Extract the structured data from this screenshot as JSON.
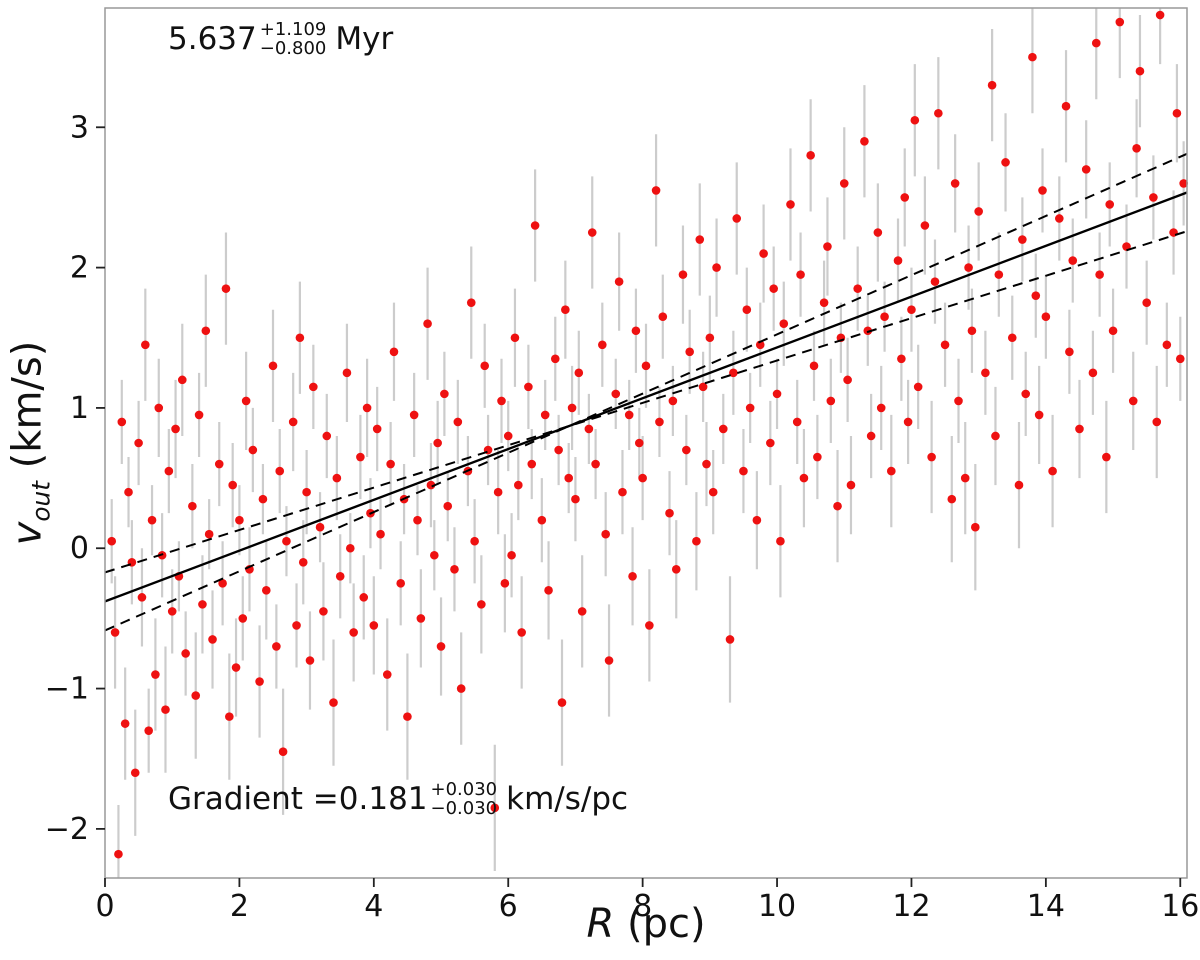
{
  "annotations": {
    "age_value": "5.637",
    "age_plus": "+1.109",
    "age_minus": "−0.800",
    "age_unit": "Myr",
    "gradient_prefix": "Gradient = ",
    "gradient_value": "0.181",
    "gradient_plus": "+0.030",
    "gradient_minus": "−0.030",
    "gradient_unit": "km/s/pc"
  },
  "chart_data": {
    "type": "scatter",
    "title": "",
    "xlabel": "R (pc)",
    "ylabel": "v_out (km/s)",
    "xlabel_var": "R",
    "xlabel_rest": " (pc)",
    "ylabel_var": "v",
    "ylabel_sub": "out",
    "ylabel_rest": " (km/s)",
    "xlim": [
      0,
      16.1
    ],
    "ylim": [
      -2.35,
      3.85
    ],
    "x_ticks": [
      0,
      2,
      4,
      6,
      8,
      10,
      12,
      14,
      16
    ],
    "y_ticks": [
      -2,
      -1,
      0,
      1,
      2,
      3
    ],
    "grid": false,
    "legend": "none",
    "marker_color": "#ee1111",
    "errorbar_color": "#c7c7c7",
    "line_color": "#000000",
    "fit": {
      "slope": 0.181,
      "intercept": -0.379
    },
    "envelope": [
      {
        "slope": 0.211,
        "intercept": -0.586
      },
      {
        "slope": 0.151,
        "intercept": -0.172
      }
    ],
    "points": [
      [
        0.1,
        0.05,
        0.3
      ],
      [
        0.15,
        -0.6,
        0.4
      ],
      [
        0.2,
        -2.18,
        0.35
      ],
      [
        0.25,
        0.9,
        0.3
      ],
      [
        0.3,
        -1.25,
        0.4
      ],
      [
        0.35,
        0.4,
        0.25
      ],
      [
        0.4,
        -0.1,
        0.3
      ],
      [
        0.45,
        -1.6,
        0.45
      ],
      [
        0.5,
        0.75,
        0.3
      ],
      [
        0.55,
        -0.35,
        0.35
      ],
      [
        0.6,
        1.45,
        0.4
      ],
      [
        0.65,
        -1.3,
        0.3
      ],
      [
        0.7,
        0.2,
        0.25
      ],
      [
        0.75,
        -0.9,
        0.4
      ],
      [
        0.8,
        1.0,
        0.35
      ],
      [
        0.85,
        -0.05,
        0.3
      ],
      [
        0.9,
        -1.15,
        0.45
      ],
      [
        0.95,
        0.55,
        0.3
      ],
      [
        1.0,
        -0.45,
        0.3
      ],
      [
        1.05,
        0.85,
        0.35
      ],
      [
        1.1,
        -0.2,
        0.25
      ],
      [
        1.15,
        1.2,
        0.4
      ],
      [
        1.2,
        -0.75,
        0.3
      ],
      [
        1.3,
        0.3,
        0.3
      ],
      [
        1.35,
        -1.05,
        0.45
      ],
      [
        1.4,
        0.95,
        0.3
      ],
      [
        1.45,
        -0.4,
        0.35
      ],
      [
        1.5,
        1.55,
        0.4
      ],
      [
        1.55,
        0.1,
        0.25
      ],
      [
        1.6,
        -0.65,
        0.35
      ],
      [
        1.7,
        0.6,
        0.3
      ],
      [
        1.75,
        -0.25,
        0.3
      ],
      [
        1.8,
        1.85,
        0.4
      ],
      [
        1.85,
        -1.2,
        0.45
      ],
      [
        1.9,
        0.45,
        0.3
      ],
      [
        1.95,
        -0.85,
        0.35
      ],
      [
        2.0,
        0.2,
        0.25
      ],
      [
        2.05,
        -0.5,
        0.3
      ],
      [
        2.1,
        1.05,
        0.35
      ],
      [
        2.15,
        -0.15,
        0.3
      ],
      [
        2.2,
        0.7,
        0.3
      ],
      [
        2.3,
        -0.95,
        0.4
      ],
      [
        2.35,
        0.35,
        0.25
      ],
      [
        2.4,
        -0.3,
        0.35
      ],
      [
        2.5,
        1.3,
        0.4
      ],
      [
        2.55,
        -0.7,
        0.3
      ],
      [
        2.6,
        0.55,
        0.3
      ],
      [
        2.65,
        -1.45,
        0.45
      ],
      [
        2.7,
        0.05,
        0.25
      ],
      [
        2.8,
        0.9,
        0.35
      ],
      [
        2.85,
        -0.55,
        0.3
      ],
      [
        2.9,
        1.5,
        0.4
      ],
      [
        2.95,
        -0.1,
        0.3
      ],
      [
        3.0,
        0.4,
        0.3
      ],
      [
        3.05,
        -0.8,
        0.35
      ],
      [
        3.1,
        1.15,
        0.3
      ],
      [
        3.2,
        0.15,
        0.25
      ],
      [
        3.25,
        -0.45,
        0.35
      ],
      [
        3.3,
        0.8,
        0.3
      ],
      [
        3.4,
        -1.1,
        0.45
      ],
      [
        3.45,
        0.5,
        0.3
      ],
      [
        3.5,
        -0.2,
        0.3
      ],
      [
        3.6,
        1.25,
        0.35
      ],
      [
        3.65,
        0.0,
        0.25
      ],
      [
        3.7,
        -0.6,
        0.35
      ],
      [
        3.8,
        0.65,
        0.3
      ],
      [
        3.85,
        -0.35,
        0.3
      ],
      [
        3.9,
        1.0,
        0.35
      ],
      [
        3.95,
        0.25,
        0.25
      ],
      [
        4.0,
        -0.55,
        0.35
      ],
      [
        4.05,
        0.85,
        0.3
      ],
      [
        4.1,
        0.1,
        0.25
      ],
      [
        4.2,
        -0.9,
        0.4
      ],
      [
        4.25,
        0.6,
        0.3
      ],
      [
        4.3,
        1.4,
        0.35
      ],
      [
        4.4,
        -0.25,
        0.3
      ],
      [
        4.45,
        0.35,
        0.25
      ],
      [
        4.5,
        -1.2,
        0.45
      ],
      [
        4.6,
        0.95,
        0.3
      ],
      [
        4.65,
        0.2,
        0.25
      ],
      [
        4.7,
        -0.5,
        0.35
      ],
      [
        4.8,
        1.6,
        0.4
      ],
      [
        4.85,
        0.45,
        0.3
      ],
      [
        4.9,
        -0.05,
        0.25
      ],
      [
        4.95,
        0.75,
        0.3
      ],
      [
        5.0,
        -0.7,
        0.35
      ],
      [
        5.05,
        1.1,
        0.3
      ],
      [
        5.1,
        0.3,
        0.25
      ],
      [
        5.2,
        -0.15,
        0.3
      ],
      [
        5.25,
        0.9,
        0.3
      ],
      [
        5.3,
        -1.0,
        0.4
      ],
      [
        5.4,
        0.55,
        0.25
      ],
      [
        5.45,
        1.75,
        0.4
      ],
      [
        5.5,
        0.05,
        0.3
      ],
      [
        5.6,
        -0.4,
        0.35
      ],
      [
        5.65,
        1.3,
        0.3
      ],
      [
        5.7,
        0.7,
        0.25
      ],
      [
        5.8,
        -1.85,
        0.45
      ],
      [
        5.85,
        0.4,
        0.3
      ],
      [
        5.9,
        1.05,
        0.3
      ],
      [
        5.95,
        -0.25,
        0.35
      ],
      [
        6.0,
        0.8,
        0.25
      ],
      [
        6.05,
        -0.05,
        0.3
      ],
      [
        6.1,
        1.5,
        0.35
      ],
      [
        6.15,
        0.45,
        0.25
      ],
      [
        6.2,
        -0.6,
        0.4
      ],
      [
        6.3,
        1.15,
        0.3
      ],
      [
        6.35,
        0.6,
        0.25
      ],
      [
        6.4,
        2.3,
        0.4
      ],
      [
        6.5,
        0.2,
        0.3
      ],
      [
        6.55,
        0.95,
        0.25
      ],
      [
        6.6,
        -0.3,
        0.35
      ],
      [
        6.7,
        1.35,
        0.3
      ],
      [
        6.75,
        0.7,
        0.25
      ],
      [
        6.8,
        -1.1,
        0.45
      ],
      [
        6.85,
        1.7,
        0.35
      ],
      [
        6.9,
        0.5,
        0.25
      ],
      [
        6.95,
        1.0,
        0.3
      ],
      [
        7.0,
        0.35,
        0.3
      ],
      [
        7.05,
        1.25,
        0.3
      ],
      [
        7.1,
        -0.45,
        0.4
      ],
      [
        7.2,
        0.85,
        0.25
      ],
      [
        7.25,
        2.25,
        0.4
      ],
      [
        7.3,
        0.6,
        0.25
      ],
      [
        7.4,
        1.45,
        0.3
      ],
      [
        7.45,
        0.1,
        0.3
      ],
      [
        7.5,
        -0.8,
        0.4
      ],
      [
        7.6,
        1.1,
        0.25
      ],
      [
        7.65,
        1.9,
        0.35
      ],
      [
        7.7,
        0.4,
        0.3
      ],
      [
        7.8,
        0.95,
        0.25
      ],
      [
        7.85,
        -0.2,
        0.35
      ],
      [
        7.9,
        1.55,
        0.3
      ],
      [
        7.95,
        0.75,
        0.25
      ],
      [
        8.0,
        0.5,
        0.3
      ],
      [
        8.05,
        1.3,
        0.3
      ],
      [
        8.1,
        -0.55,
        0.4
      ],
      [
        8.2,
        2.55,
        0.4
      ],
      [
        8.25,
        0.9,
        0.25
      ],
      [
        8.3,
        1.65,
        0.3
      ],
      [
        8.4,
        0.25,
        0.3
      ],
      [
        8.45,
        1.05,
        0.25
      ],
      [
        8.5,
        -0.15,
        0.35
      ],
      [
        8.6,
        1.95,
        0.35
      ],
      [
        8.65,
        0.7,
        0.25
      ],
      [
        8.7,
        1.4,
        0.3
      ],
      [
        8.8,
        0.05,
        0.35
      ],
      [
        8.85,
        2.2,
        0.4
      ],
      [
        8.9,
        1.15,
        0.25
      ],
      [
        8.95,
        0.6,
        0.3
      ],
      [
        9.0,
        1.5,
        0.3
      ],
      [
        9.05,
        0.4,
        0.3
      ],
      [
        9.1,
        2.0,
        0.35
      ],
      [
        9.2,
        0.85,
        0.25
      ],
      [
        9.3,
        -0.65,
        0.45
      ],
      [
        9.35,
        1.25,
        0.3
      ],
      [
        9.4,
        2.35,
        0.4
      ],
      [
        9.5,
        0.55,
        0.3
      ],
      [
        9.55,
        1.7,
        0.3
      ],
      [
        9.6,
        1.0,
        0.25
      ],
      [
        9.7,
        0.2,
        0.35
      ],
      [
        9.75,
        1.45,
        0.3
      ],
      [
        9.8,
        2.1,
        0.35
      ],
      [
        9.9,
        0.75,
        0.3
      ],
      [
        9.95,
        1.85,
        0.3
      ],
      [
        10.0,
        1.1,
        0.25
      ],
      [
        10.05,
        0.05,
        0.4
      ],
      [
        10.1,
        1.6,
        0.3
      ],
      [
        10.2,
        2.45,
        0.4
      ],
      [
        10.3,
        0.9,
        0.3
      ],
      [
        10.35,
        1.95,
        0.3
      ],
      [
        10.4,
        0.5,
        0.35
      ],
      [
        10.5,
        2.8,
        0.4
      ],
      [
        10.55,
        1.3,
        0.25
      ],
      [
        10.6,
        0.65,
        0.3
      ],
      [
        10.7,
        1.75,
        0.3
      ],
      [
        10.75,
        2.15,
        0.35
      ],
      [
        10.8,
        1.05,
        0.3
      ],
      [
        10.9,
        0.3,
        0.4
      ],
      [
        10.95,
        1.5,
        0.25
      ],
      [
        11.0,
        2.6,
        0.4
      ],
      [
        11.05,
        1.2,
        0.3
      ],
      [
        11.1,
        0.45,
        0.35
      ],
      [
        11.2,
        1.85,
        0.3
      ],
      [
        11.3,
        2.9,
        0.4
      ],
      [
        11.35,
        1.55,
        0.25
      ],
      [
        11.4,
        0.8,
        0.3
      ],
      [
        11.5,
        2.25,
        0.35
      ],
      [
        11.55,
        1.0,
        0.3
      ],
      [
        11.6,
        1.65,
        0.25
      ],
      [
        11.7,
        0.55,
        0.4
      ],
      [
        11.8,
        2.05,
        0.3
      ],
      [
        11.85,
        1.35,
        0.3
      ],
      [
        11.9,
        2.5,
        0.35
      ],
      [
        11.95,
        0.9,
        0.3
      ],
      [
        12.0,
        1.7,
        0.3
      ],
      [
        12.05,
        3.05,
        0.4
      ],
      [
        12.1,
        1.15,
        0.3
      ],
      [
        12.2,
        2.3,
        0.35
      ],
      [
        12.3,
        0.65,
        0.4
      ],
      [
        12.35,
        1.9,
        0.3
      ],
      [
        12.4,
        3.1,
        0.4
      ],
      [
        12.5,
        1.45,
        0.3
      ],
      [
        12.6,
        0.35,
        0.45
      ],
      [
        12.65,
        2.6,
        0.35
      ],
      [
        12.7,
        1.05,
        0.3
      ],
      [
        12.8,
        0.5,
        0.4
      ],
      [
        12.85,
        2.0,
        0.3
      ],
      [
        12.9,
        1.55,
        0.3
      ],
      [
        12.95,
        0.15,
        0.45
      ],
      [
        13.0,
        2.4,
        0.35
      ],
      [
        13.1,
        1.25,
        0.3
      ],
      [
        13.2,
        3.3,
        0.4
      ],
      [
        13.25,
        0.8,
        0.35
      ],
      [
        13.3,
        1.95,
        0.3
      ],
      [
        13.4,
        2.75,
        0.35
      ],
      [
        13.5,
        1.5,
        0.3
      ],
      [
        13.6,
        0.45,
        0.45
      ],
      [
        13.65,
        2.2,
        0.3
      ],
      [
        13.7,
        1.1,
        0.3
      ],
      [
        13.8,
        3.5,
        0.4
      ],
      [
        13.85,
        1.8,
        0.3
      ],
      [
        13.9,
        0.95,
        0.35
      ],
      [
        13.95,
        2.55,
        0.3
      ],
      [
        14.0,
        1.65,
        0.3
      ],
      [
        14.1,
        0.55,
        0.4
      ],
      [
        14.2,
        2.35,
        0.3
      ],
      [
        14.3,
        3.15,
        0.4
      ],
      [
        14.35,
        1.4,
        0.3
      ],
      [
        14.4,
        2.05,
        0.3
      ],
      [
        14.5,
        0.85,
        0.35
      ],
      [
        14.6,
        2.7,
        0.35
      ],
      [
        14.7,
        1.25,
        0.3
      ],
      [
        14.75,
        3.6,
        0.4
      ],
      [
        14.8,
        1.95,
        0.3
      ],
      [
        14.9,
        0.65,
        0.4
      ],
      [
        14.95,
        2.45,
        0.3
      ],
      [
        15.0,
        1.55,
        0.3
      ],
      [
        15.1,
        3.75,
        0.4
      ],
      [
        15.2,
        2.15,
        0.3
      ],
      [
        15.3,
        1.05,
        0.35
      ],
      [
        15.35,
        2.85,
        0.35
      ],
      [
        15.4,
        3.4,
        0.4
      ],
      [
        15.5,
        1.75,
        0.3
      ],
      [
        15.6,
        2.5,
        0.3
      ],
      [
        15.65,
        0.9,
        0.4
      ],
      [
        15.7,
        3.8,
        0.35
      ],
      [
        15.8,
        1.45,
        0.3
      ],
      [
        15.9,
        2.25,
        0.3
      ],
      [
        15.95,
        3.1,
        0.35
      ],
      [
        16.0,
        1.35,
        0.3
      ],
      [
        16.05,
        2.6,
        0.3
      ]
    ]
  }
}
